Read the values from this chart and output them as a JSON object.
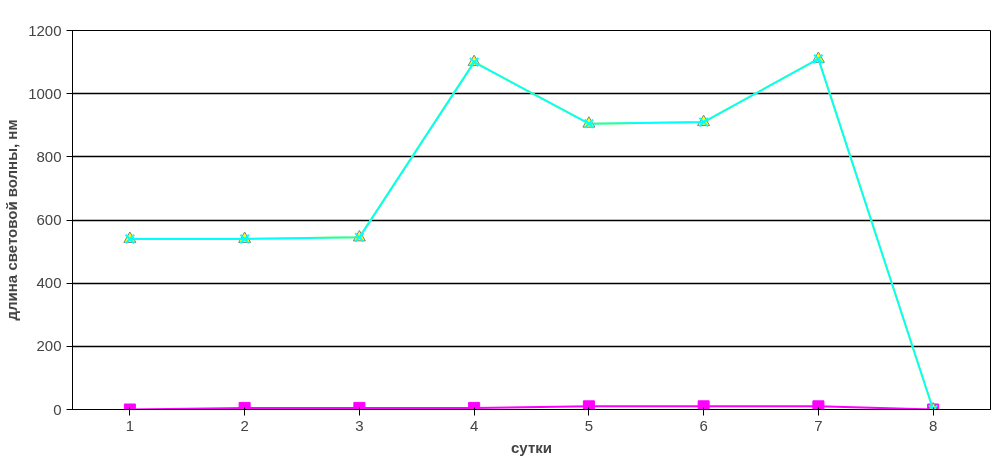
{
  "chart_data": {
    "type": "line",
    "xlabel": "сутки",
    "ylabel": "длина световой волны, нм",
    "categories": [
      "1",
      "2",
      "3",
      "4",
      "5",
      "6",
      "7",
      "8"
    ],
    "series": [
      {
        "color": "#ff00ff",
        "marker": "square",
        "values": [
          0,
          5,
          5,
          5,
          10,
          10,
          10,
          0
        ]
      },
      {
        "color": "#ffff00",
        "marker": "triangle",
        "values": [
          540,
          540,
          545,
          1100,
          905,
          910,
          1110,
          0
        ]
      },
      {
        "color": "#00ffff",
        "marker": "cross",
        "values": [
          540,
          540,
          545,
          1100,
          905,
          910,
          1110,
          0
        ]
      }
    ],
    "ylim": [
      0,
      1200
    ],
    "yticks": [
      0,
      200,
      400,
      600,
      800,
      1000,
      1200
    ],
    "grid": "y"
  }
}
